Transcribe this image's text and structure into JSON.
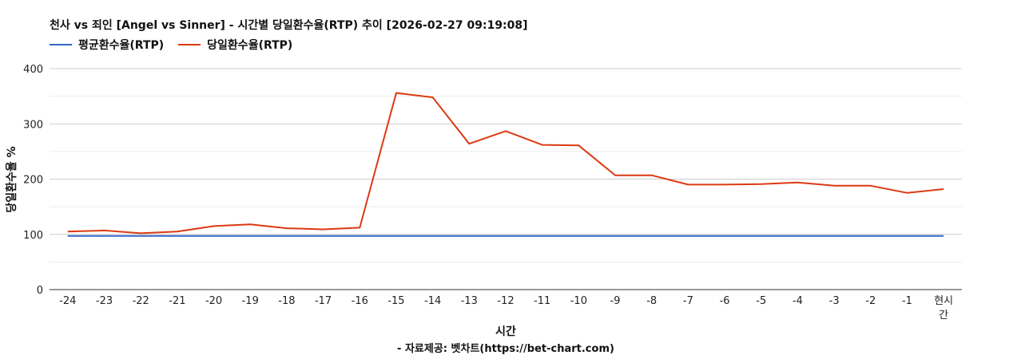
{
  "chart_data": {
    "type": "line",
    "title": "천사 vs 죄인 [Angel vs Sinner] - 시간별 당일환수율(RTP) 추이 [2026-02-27 09:19:08]",
    "xlabel": "시간",
    "ylabel": "당일환수율 %",
    "credit": "- 자료제공: 벳차트(https://bet-chart.com)",
    "categories": [
      "-24",
      "-23",
      "-22",
      "-21",
      "-20",
      "-19",
      "-18",
      "-17",
      "-16",
      "-15",
      "-14",
      "-13",
      "-12",
      "-11",
      "-10",
      "-9",
      "-8",
      "-7",
      "-6",
      "-5",
      "-4",
      "-3",
      "-2",
      "-1",
      "현시간"
    ],
    "category_display": [
      "-24",
      "-23",
      "-22",
      "-21",
      "-20",
      "-19",
      "-18",
      "-17",
      "-16",
      "-15",
      "-14",
      "-13",
      "-12",
      "-11",
      "-10",
      "-9",
      "-8",
      "-7",
      "-6",
      "-5",
      "-4",
      "-3",
      "-2",
      "-1",
      [
        "현시",
        "간"
      ]
    ],
    "ylim": [
      0,
      400
    ],
    "yticks": [
      0,
      100,
      200,
      300,
      400
    ],
    "grid": true,
    "legend_position": "top-left",
    "series": [
      {
        "name": "평균환수율(RTP)",
        "color": "#3366cc",
        "values": [
          97,
          97,
          97,
          97,
          97,
          97,
          97,
          97,
          97,
          97,
          97,
          97,
          97,
          97,
          97,
          97,
          97,
          97,
          97,
          97,
          97,
          97,
          97,
          97,
          97
        ]
      },
      {
        "name": "당일환수율(RTP)",
        "color": "#dc3912",
        "values": [
          105,
          107,
          102,
          105,
          115,
          118,
          111,
          109,
          112,
          356,
          348,
          264,
          287,
          262,
          261,
          207,
          207,
          190,
          190,
          191,
          194,
          188,
          188,
          175,
          182
        ]
      }
    ]
  }
}
